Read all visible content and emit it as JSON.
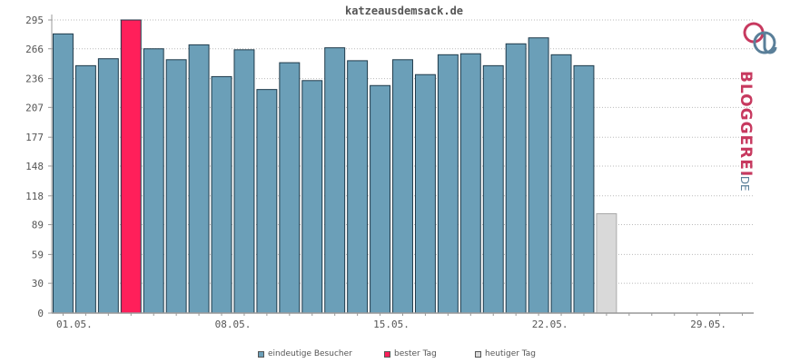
{
  "chart_data": {
    "type": "bar",
    "title": "katzeausdemsack.de",
    "x": [
      "01.05.",
      "02.05.",
      "03.05.",
      "04.05.",
      "05.05.",
      "06.05.",
      "07.05.",
      "08.05.",
      "09.05.",
      "10.05.",
      "11.05.",
      "12.05.",
      "13.05.",
      "14.05.",
      "15.05.",
      "16.05.",
      "17.05.",
      "18.05.",
      "19.05.",
      "20.05.",
      "21.05.",
      "22.05.",
      "23.05.",
      "24.05.",
      "25.05.",
      "26.05.",
      "27.05.",
      "28.05.",
      "29.05.",
      "30.05.",
      "31.05."
    ],
    "values": [
      281,
      249,
      256,
      295,
      266,
      255,
      270,
      238,
      265,
      225,
      252,
      234,
      267,
      254,
      229,
      255,
      240,
      260,
      261,
      249,
      271,
      277,
      260,
      249,
      100,
      null,
      null,
      null,
      null,
      null,
      null
    ],
    "best_index": 3,
    "today_index": 24,
    "ylim": [
      0,
      295
    ],
    "yticks": [
      0,
      30,
      59,
      89,
      118,
      148,
      177,
      207,
      236,
      266,
      295
    ],
    "xtick_labels": [
      "01.05.",
      "08.05.",
      "15.05.",
      "22.05.",
      "29.05."
    ],
    "xtick_indices": [
      1,
      8,
      15,
      22,
      29
    ],
    "grid": true,
    "legend_placement": "bottom",
    "colors": {
      "regular": "#6b9fb8",
      "best": "#ff1f5a",
      "today": "#d9d9d9",
      "edge": "#1f3a4a",
      "grid": "#bbbbbb",
      "axis": "#999999",
      "text": "#555555"
    }
  },
  "legend": [
    {
      "label": "eindeutige Besucher",
      "color": "#6b9fb8"
    },
    {
      "label": "bester Tag",
      "color": "#ff1f5a"
    },
    {
      "label": "heutiger Tag",
      "color": "#d9d9d9"
    }
  ],
  "brand": {
    "text": "BLOGGEREI",
    "suffix": ".DE",
    "color_main": "#c7395f",
    "color_accent": "#5a7f99"
  }
}
